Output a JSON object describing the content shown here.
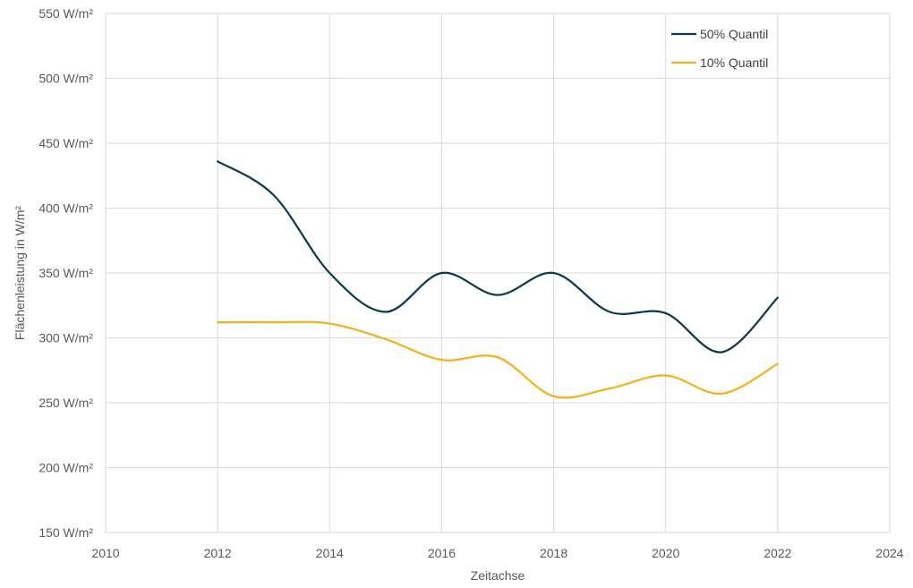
{
  "chart_data": {
    "type": "line",
    "xlabel": "Zeitachse",
    "ylabel": "Flächenleistung in W/m²",
    "unit_suffix": " W/m²",
    "xlim": [
      2010,
      2024
    ],
    "ylim": [
      150,
      550
    ],
    "x_ticks": [
      "2010",
      "2012",
      "2014",
      "2016",
      "2018",
      "2020",
      "2022",
      "2024"
    ],
    "y_ticks": [
      "150 W/m²",
      "200 W/m²",
      "250 W/m²",
      "300 W/m²",
      "350 W/m²",
      "400 W/m²",
      "450 W/m²",
      "500 W/m²",
      "550 W/m²"
    ],
    "grid": true,
    "smoothed": true,
    "legend_position": "top-right",
    "x": [
      2012,
      2013,
      2014,
      2015,
      2016,
      2017,
      2018,
      2019,
      2020,
      2021,
      2022
    ],
    "series": [
      {
        "name": "50% Quantil",
        "color": "#0e3a4f",
        "values": [
          436,
          410,
          350,
          320,
          350,
          333,
          350,
          320,
          319,
          289,
          331
        ]
      },
      {
        "name": "10% Quantil",
        "color": "#f2b21c",
        "values": [
          312,
          312,
          311,
          299,
          283,
          285,
          255,
          261,
          271,
          257,
          280
        ]
      }
    ]
  }
}
